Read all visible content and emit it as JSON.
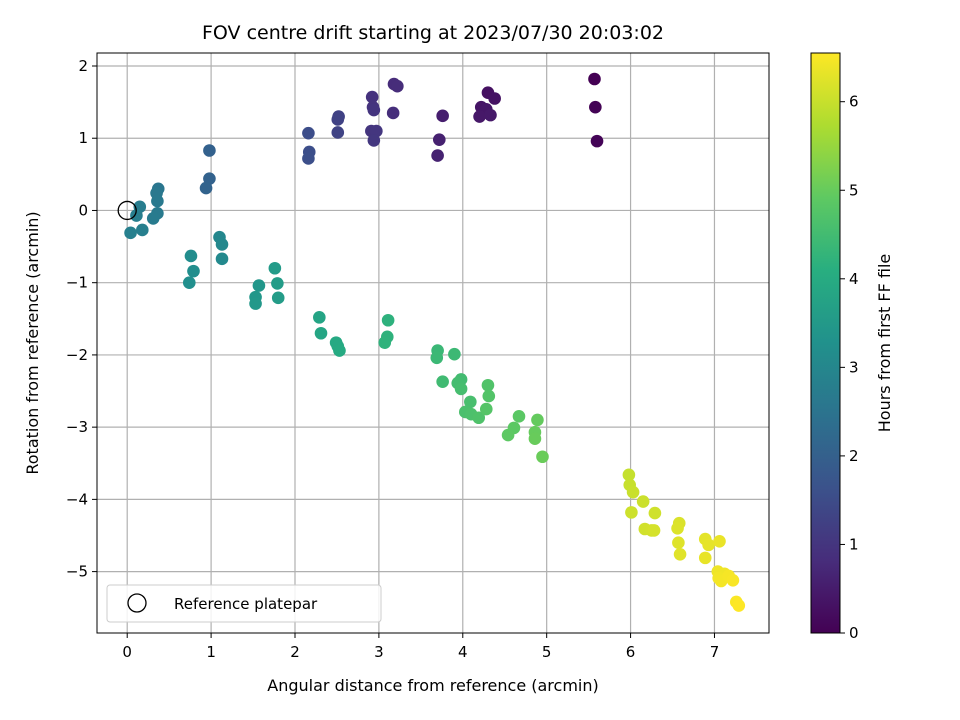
{
  "chart_data": {
    "type": "scatter",
    "title": "FOV centre drift starting at 2023/07/30 20:03:02",
    "xlabel": "Angular distance from reference (arcmin)",
    "ylabel": "Rotation from reference (arcmin)",
    "xlim": [
      -0.36,
      7.65
    ],
    "ylim": [
      -5.85,
      2.18
    ],
    "xticks": [
      0,
      1,
      2,
      3,
      4,
      5,
      6,
      7
    ],
    "yticks": [
      2,
      1,
      0,
      -1,
      -2,
      -3,
      -4,
      -5
    ],
    "xtick_labels": [
      "0",
      "1",
      "2",
      "3",
      "4",
      "5",
      "6",
      "7"
    ],
    "ytick_labels": [
      "2",
      "1",
      "0",
      "−1",
      "−2",
      "−3",
      "−4",
      "−5"
    ],
    "grid": true,
    "colormap": "viridis",
    "colorbar": {
      "label": "Hours from first FF file",
      "range": [
        0,
        6.55
      ],
      "ticks": [
        0,
        1,
        2,
        3,
        4,
        5,
        6
      ],
      "tick_labels": [
        "0",
        "1",
        "2",
        "3",
        "4",
        "5",
        "6"
      ]
    },
    "reference": {
      "x": 0,
      "y": 0,
      "marker": "open-circle",
      "color": "#000000"
    },
    "legend": {
      "entries": [
        "Reference platepar"
      ],
      "placement": "lower-left"
    },
    "points": [
      {
        "x": 5.57,
        "y": 1.82,
        "t": 0.0
      },
      {
        "x": 5.58,
        "y": 1.43,
        "t": 0.03
      },
      {
        "x": 5.6,
        "y": 0.96,
        "t": 0.06
      },
      {
        "x": 4.3,
        "y": 1.63,
        "t": 0.28
      },
      {
        "x": 4.38,
        "y": 1.55,
        "t": 0.32
      },
      {
        "x": 4.22,
        "y": 1.43,
        "t": 0.36
      },
      {
        "x": 4.28,
        "y": 1.4,
        "t": 0.4
      },
      {
        "x": 4.2,
        "y": 1.3,
        "t": 0.43
      },
      {
        "x": 4.33,
        "y": 1.32,
        "t": 0.46
      },
      {
        "x": 3.76,
        "y": 1.31,
        "t": 0.56
      },
      {
        "x": 3.72,
        "y": 0.98,
        "t": 0.6
      },
      {
        "x": 3.7,
        "y": 0.76,
        "t": 0.63
      },
      {
        "x": 3.18,
        "y": 1.75,
        "t": 0.82
      },
      {
        "x": 3.22,
        "y": 1.72,
        "t": 0.84
      },
      {
        "x": 3.17,
        "y": 1.35,
        "t": 0.86
      },
      {
        "x": 2.92,
        "y": 1.57,
        "t": 0.95
      },
      {
        "x": 2.93,
        "y": 1.43,
        "t": 0.97
      },
      {
        "x": 2.94,
        "y": 1.39,
        "t": 0.99
      },
      {
        "x": 2.91,
        "y": 1.1,
        "t": 1.02
      },
      {
        "x": 2.97,
        "y": 1.1,
        "t": 1.04
      },
      {
        "x": 2.94,
        "y": 0.97,
        "t": 1.06
      },
      {
        "x": 2.52,
        "y": 1.3,
        "t": 1.28
      },
      {
        "x": 2.51,
        "y": 1.26,
        "t": 1.3
      },
      {
        "x": 2.51,
        "y": 1.08,
        "t": 1.32
      },
      {
        "x": 2.16,
        "y": 1.07,
        "t": 1.55
      },
      {
        "x": 2.17,
        "y": 0.81,
        "t": 1.57
      },
      {
        "x": 2.16,
        "y": 0.72,
        "t": 1.59
      },
      {
        "x": 0.98,
        "y": 0.83,
        "t": 2.05
      },
      {
        "x": 0.98,
        "y": 0.44,
        "t": 2.08
      },
      {
        "x": 0.94,
        "y": 0.31,
        "t": 2.11
      },
      {
        "x": 0.37,
        "y": 0.3,
        "t": 2.6
      },
      {
        "x": 0.35,
        "y": 0.24,
        "t": 2.63
      },
      {
        "x": 0.36,
        "y": 0.13,
        "t": 2.66
      },
      {
        "x": 0.36,
        "y": -0.04,
        "t": 2.69
      },
      {
        "x": 0.31,
        "y": -0.11,
        "t": 2.72
      },
      {
        "x": 0.15,
        "y": 0.05,
        "t": 2.76
      },
      {
        "x": 0.11,
        "y": -0.07,
        "t": 2.79
      },
      {
        "x": 0.18,
        "y": -0.27,
        "t": 2.82
      },
      {
        "x": 0.04,
        "y": -0.31,
        "t": 2.85
      },
      {
        "x": 1.1,
        "y": -0.37,
        "t": 3.05
      },
      {
        "x": 1.13,
        "y": -0.47,
        "t": 3.07
      },
      {
        "x": 1.13,
        "y": -0.67,
        "t": 3.09
      },
      {
        "x": 0.76,
        "y": -0.63,
        "t": 3.2
      },
      {
        "x": 0.79,
        "y": -0.84,
        "t": 3.22
      },
      {
        "x": 0.74,
        "y": -1.0,
        "t": 3.24
      },
      {
        "x": 1.57,
        "y": -1.04,
        "t": 3.45
      },
      {
        "x": 1.53,
        "y": -1.2,
        "t": 3.47
      },
      {
        "x": 1.53,
        "y": -1.29,
        "t": 3.49
      },
      {
        "x": 1.76,
        "y": -0.8,
        "t": 3.58
      },
      {
        "x": 1.79,
        "y": -1.01,
        "t": 3.6
      },
      {
        "x": 1.8,
        "y": -1.21,
        "t": 3.62
      },
      {
        "x": 2.29,
        "y": -1.48,
        "t": 3.85
      },
      {
        "x": 2.31,
        "y": -1.7,
        "t": 3.87
      },
      {
        "x": 2.49,
        "y": -1.83,
        "t": 3.97
      },
      {
        "x": 2.51,
        "y": -1.88,
        "t": 3.99
      },
      {
        "x": 2.53,
        "y": -1.94,
        "t": 4.01
      },
      {
        "x": 3.11,
        "y": -1.52,
        "t": 4.2
      },
      {
        "x": 3.1,
        "y": -1.75,
        "t": 4.22
      },
      {
        "x": 3.07,
        "y": -1.83,
        "t": 4.24
      },
      {
        "x": 3.7,
        "y": -1.94,
        "t": 4.4
      },
      {
        "x": 3.69,
        "y": -2.04,
        "t": 4.42
      },
      {
        "x": 3.9,
        "y": -1.99,
        "t": 4.44
      },
      {
        "x": 3.76,
        "y": -2.37,
        "t": 4.5
      },
      {
        "x": 3.98,
        "y": -2.34,
        "t": 4.53
      },
      {
        "x": 3.94,
        "y": -2.39,
        "t": 4.56
      },
      {
        "x": 3.98,
        "y": -2.47,
        "t": 4.59
      },
      {
        "x": 4.09,
        "y": -2.65,
        "t": 4.62
      },
      {
        "x": 4.03,
        "y": -2.79,
        "t": 4.65
      },
      {
        "x": 4.1,
        "y": -2.82,
        "t": 4.68
      },
      {
        "x": 4.19,
        "y": -2.87,
        "t": 4.71
      },
      {
        "x": 4.3,
        "y": -2.42,
        "t": 4.74
      },
      {
        "x": 4.31,
        "y": -2.57,
        "t": 4.77
      },
      {
        "x": 4.28,
        "y": -2.75,
        "t": 4.8
      },
      {
        "x": 4.67,
        "y": -2.85,
        "t": 4.88
      },
      {
        "x": 4.61,
        "y": -3.01,
        "t": 4.9
      },
      {
        "x": 4.54,
        "y": -3.11,
        "t": 4.92
      },
      {
        "x": 4.89,
        "y": -2.9,
        "t": 5.0
      },
      {
        "x": 4.86,
        "y": -3.07,
        "t": 5.02
      },
      {
        "x": 4.86,
        "y": -3.16,
        "t": 5.04
      },
      {
        "x": 4.95,
        "y": -3.41,
        "t": 5.06
      },
      {
        "x": 5.98,
        "y": -3.66,
        "t": 6.0
      },
      {
        "x": 5.99,
        "y": -3.8,
        "t": 6.02
      },
      {
        "x": 6.03,
        "y": -3.9,
        "t": 6.04
      },
      {
        "x": 6.15,
        "y": -4.03,
        "t": 6.06
      },
      {
        "x": 6.01,
        "y": -4.18,
        "t": 6.08
      },
      {
        "x": 6.29,
        "y": -4.19,
        "t": 6.1
      },
      {
        "x": 6.17,
        "y": -4.41,
        "t": 6.12
      },
      {
        "x": 6.25,
        "y": -4.43,
        "t": 6.14
      },
      {
        "x": 6.28,
        "y": -4.43,
        "t": 6.16
      },
      {
        "x": 6.58,
        "y": -4.33,
        "t": 6.2
      },
      {
        "x": 6.56,
        "y": -4.4,
        "t": 6.22
      },
      {
        "x": 6.57,
        "y": -4.6,
        "t": 6.24
      },
      {
        "x": 6.59,
        "y": -4.76,
        "t": 6.26
      },
      {
        "x": 6.89,
        "y": -4.55,
        "t": 6.3
      },
      {
        "x": 6.93,
        "y": -4.63,
        "t": 6.32
      },
      {
        "x": 6.89,
        "y": -4.81,
        "t": 6.34
      },
      {
        "x": 7.06,
        "y": -4.58,
        "t": 6.36
      },
      {
        "x": 7.04,
        "y": -5.0,
        "t": 6.4
      },
      {
        "x": 7.12,
        "y": -5.03,
        "t": 6.42
      },
      {
        "x": 7.05,
        "y": -5.09,
        "t": 6.44
      },
      {
        "x": 7.08,
        "y": -5.13,
        "t": 6.46
      },
      {
        "x": 7.17,
        "y": -5.06,
        "t": 6.48
      },
      {
        "x": 7.22,
        "y": -5.12,
        "t": 6.5
      },
      {
        "x": 7.26,
        "y": -5.42,
        "t": 6.52
      },
      {
        "x": 7.29,
        "y": -5.47,
        "t": 6.55
      }
    ]
  }
}
